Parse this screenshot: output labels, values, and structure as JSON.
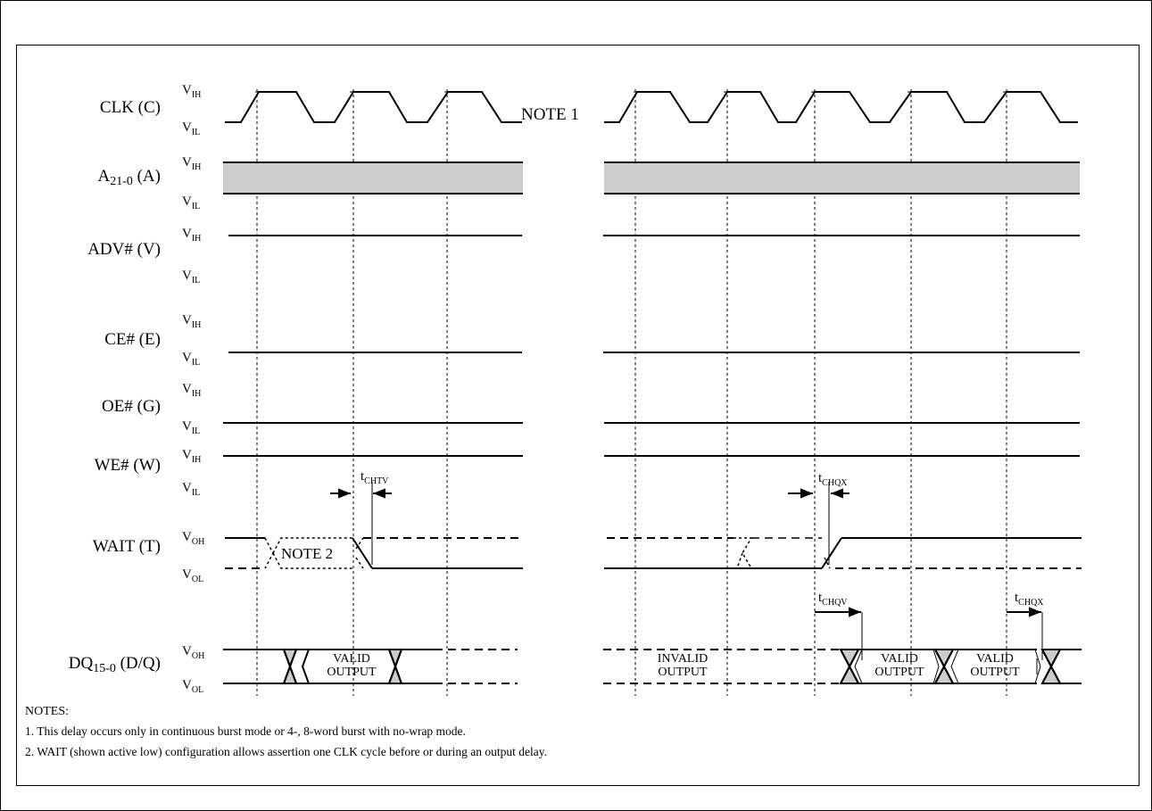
{
  "signals": [
    {
      "name": "CLK (C)",
      "levels": [
        "V|IH",
        "V|IL"
      ]
    },
    {
      "name": "A|21-0| (A)",
      "levels": [
        "V|IH",
        "V|IL"
      ]
    },
    {
      "name": "ADV# (V)",
      "levels": [
        "V|IH",
        "V|IL"
      ]
    },
    {
      "name": "CE# (E)",
      "levels": [
        "V|IH",
        "V|IL"
      ]
    },
    {
      "name": "OE# (G)",
      "levels": [
        "V|IH",
        "V|IL"
      ]
    },
    {
      "name": "WE# (W)",
      "levels": [
        "V|IH",
        "V|IL"
      ]
    },
    {
      "name": "WAIT (T)",
      "levels": [
        "V|OH",
        "V|OL"
      ]
    },
    {
      "name": "DQ|15-0| (D/Q)",
      "levels": [
        "V|OH",
        "V|OL"
      ]
    }
  ],
  "annotations": {
    "note1": "NOTE 1",
    "note2": "NOTE 2",
    "valid_output": [
      "VALID",
      "OUTPUT"
    ],
    "invalid_output": [
      "INVALID",
      "OUTPUT"
    ]
  },
  "timing_labels": {
    "chtv": "t|CHTV",
    "chqx": "t|CHQX",
    "chqv": "t|CHQV"
  },
  "notes": {
    "header": "NOTES:",
    "items": [
      "1. This delay occurs only in continuous burst mode or 4-, 8-word burst with no-wrap mode.",
      "2. WAIT (shown active low) configuration allows assertion one CLK cycle before or during an output delay."
    ]
  },
  "colors": {
    "line": "#000000",
    "hatch_fill": "#cccccc",
    "background": "#ffffff"
  }
}
